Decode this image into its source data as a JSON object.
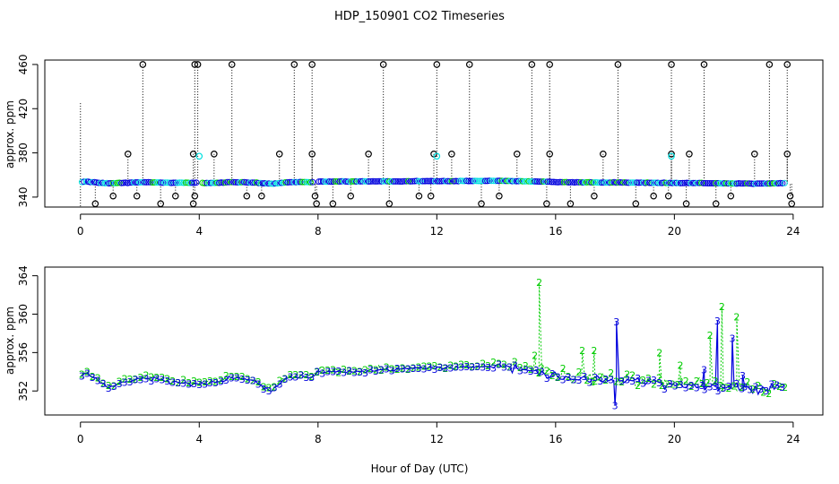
{
  "chart_data": [
    {
      "type": "scatter",
      "title": "HDP_150901  CO2 Timeseries",
      "xlabel": "",
      "ylabel": "approx. ppm",
      "xlim": [
        -1.2,
        25.0
      ],
      "ylim": [
        331,
        464
      ],
      "x_ticks": [
        0,
        4,
        8,
        12,
        16,
        20,
        24
      ],
      "y_ticks": [
        340,
        380,
        420,
        460
      ],
      "y_tick_labels": [
        "340",
        "380",
        "420",
        "460"
      ],
      "colors": {
        "raw": "#000000",
        "cyan": "#00e0e0",
        "blue": "#0000dd",
        "green": "#00cc00"
      },
      "series": [
        {
          "name": "outliers_high",
          "color": "#000000",
          "x": [
            2.1,
            3.85,
            3.95,
            5.1,
            7.2,
            7.8,
            10.2,
            12.0,
            13.1,
            15.2,
            15.8,
            18.1,
            19.9,
            21.0,
            23.2,
            23.8
          ],
          "y": [
            460,
            460,
            460,
            460,
            460,
            460,
            460,
            460,
            460,
            460,
            460,
            460,
            460,
            460,
            460,
            460
          ]
        },
        {
          "name": "outliers_mid",
          "color": "#000000",
          "x": [
            1.6,
            3.8,
            4.5,
            6.7,
            7.8,
            9.7,
            11.9,
            12.5,
            14.7,
            15.8,
            17.6,
            19.9,
            20.5,
            22.7,
            23.8
          ],
          "y": [
            379,
            379,
            379,
            379,
            379,
            379,
            379,
            379,
            379,
            379,
            379,
            379,
            379,
            379,
            379
          ]
        },
        {
          "name": "outliers_low",
          "color": "#000000",
          "x": [
            0.5,
            1.1,
            1.9,
            2.7,
            3.2,
            3.8,
            3.85,
            5.6,
            6.1,
            7.9,
            7.95,
            8.5,
            9.1,
            10.4,
            11.4,
            11.8,
            13.5,
            14.1,
            15.7,
            16.5,
            17.3,
            18.7,
            19.3,
            19.8,
            20.4,
            21.4,
            21.9,
            23.9,
            23.95
          ],
          "y": [
            334,
            341,
            341,
            334,
            341,
            334,
            341,
            341,
            341,
            341,
            334,
            334,
            341,
            334,
            341,
            341,
            334,
            341,
            334,
            334,
            341,
            334,
            341,
            341,
            334,
            334,
            341,
            341,
            334
          ]
        },
        {
          "name": "cyan_flags",
          "color": "#00e0e0",
          "x": [
            4.0,
            12.0,
            19.9
          ],
          "y": [
            377,
            377,
            377
          ]
        }
      ]
    },
    {
      "type": "line",
      "title": "",
      "xlabel": "Hour of Day (UTC)",
      "ylabel": "approx. ppm",
      "xlim": [
        -1.2,
        25.0
      ],
      "ylim": [
        349.5,
        364.9
      ],
      "x_ticks": [
        0,
        4,
        8,
        12,
        16,
        20,
        24
      ],
      "y_ticks": [
        352,
        356,
        360,
        364
      ],
      "y_tick_labels": [
        "352",
        "356",
        "360",
        "364"
      ],
      "series": [
        {
          "name": "2",
          "color": "#00cc00"
        },
        {
          "name": "3",
          "color": "#0000dd"
        }
      ]
    }
  ],
  "x_tick_labels": [
    "0",
    "4",
    "8",
    "12",
    "16",
    "20",
    "24"
  ],
  "profile": {
    "hours": [
      0,
      0.2,
      0.5,
      0.8,
      1.0,
      1.4,
      1.8,
      2.2,
      2.6,
      3.0,
      3.5,
      3.75,
      4.0,
      4.3,
      4.7,
      5.0,
      5.4,
      5.9,
      6.1,
      6.4,
      6.7,
      7.0,
      7.4,
      7.8,
      8.0,
      9.0,
      10.0,
      11.0,
      11.8,
      12.0,
      13.0,
      14.0,
      14.5,
      15.0,
      15.5,
      16.0,
      17.0,
      18.0,
      19.0,
      20.0,
      21.0,
      22.0,
      22.5,
      23.0,
      23.7
    ],
    "ppm": [
      353.5,
      354.0,
      353.3,
      352.7,
      352.4,
      352.9,
      353.2,
      353.4,
      353.2,
      353.0,
      352.9,
      352.8,
      352.9,
      352.8,
      353.0,
      353.4,
      353.4,
      353.1,
      352.5,
      352.1,
      352.8,
      353.4,
      353.6,
      353.5,
      354.0,
      354.1,
      354.2,
      354.3,
      354.5,
      354.4,
      354.5,
      354.7,
      354.5,
      354.3,
      354.0,
      353.6,
      353.3,
      353.2,
      353.0,
      352.8,
      352.6,
      352.4,
      352.3,
      352.2,
      352.6
    ]
  },
  "spikes": {
    "green": [
      [
        15.45,
        363.3
      ],
      [
        15.3,
        355.7
      ],
      [
        16.9,
        356.2
      ],
      [
        17.3,
        356.2
      ],
      [
        19.5,
        356.0
      ],
      [
        21.2,
        357.8
      ],
      [
        21.6,
        360.8
      ],
      [
        22.1,
        359.7
      ],
      [
        20.2,
        354.7
      ]
    ],
    "blue": [
      [
        18.05,
        359.2
      ],
      [
        21.45,
        359.3
      ],
      [
        21.95,
        357.5
      ],
      [
        18.0,
        350.5
      ],
      [
        21.0,
        354.2
      ],
      [
        22.3,
        353.6
      ]
    ]
  }
}
